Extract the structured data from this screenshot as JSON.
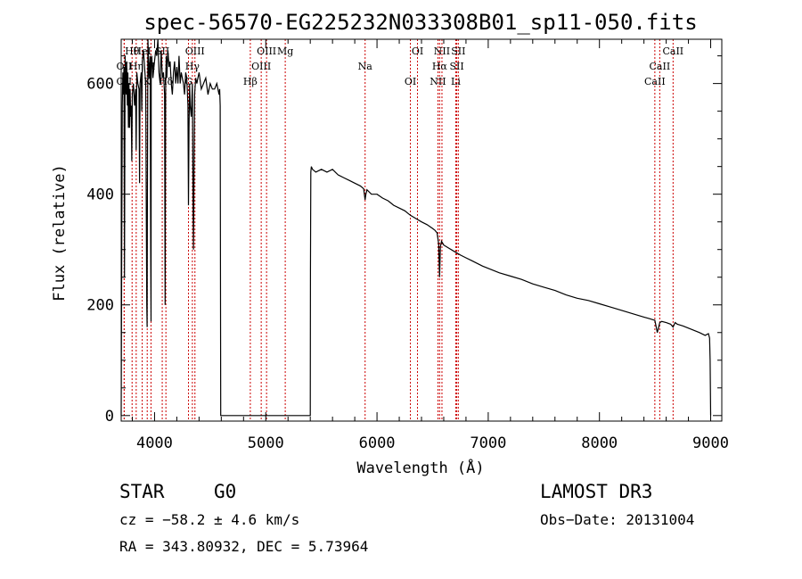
{
  "chart_data": {
    "type": "line",
    "title": "spec-56570-EG225232N033308B01_sp11-050.fits",
    "xlabel": "Wavelength (Å)",
    "ylabel": "Flux (relative)",
    "xlim": [
      3700,
      9100
    ],
    "ylim": [
      -10,
      680
    ],
    "x_ticks": [
      4000,
      5000,
      6000,
      7000,
      8000,
      9000
    ],
    "y_ticks": [
      0,
      200,
      400,
      600
    ],
    "series": [
      {
        "name": "flux",
        "x": [
          3700,
          3705,
          3710,
          3715,
          3720,
          3725,
          3730,
          3735,
          3740,
          3745,
          3750,
          3755,
          3760,
          3765,
          3770,
          3775,
          3780,
          3785,
          3790,
          3795,
          3800,
          3810,
          3820,
          3830,
          3835,
          3840,
          3850,
          3860,
          3865,
          3870,
          3880,
          3885,
          3890,
          3900,
          3910,
          3920,
          3930,
          3933,
          3935,
          3940,
          3950,
          3960,
          3965,
          3968,
          3970,
          3975,
          3985,
          4000,
          4010,
          4020,
          4030,
          4040,
          4050,
          4060,
          4070,
          4080,
          4090,
          4095,
          4100,
          4105,
          4110,
          4120,
          4130,
          4140,
          4150,
          4160,
          4170,
          4180,
          4190,
          4200,
          4210,
          4220,
          4230,
          4240,
          4250,
          4260,
          4270,
          4280,
          4290,
          4300,
          4305,
          4310,
          4315,
          4320,
          4330,
          4340,
          4345,
          4350,
          4360,
          4370,
          4380,
          4390,
          4400,
          4420,
          4440,
          4460,
          4480,
          4500,
          4520,
          4540,
          4560,
          4580,
          4585,
          4590,
          4595,
          5400,
          5402,
          5405,
          5410,
          5420,
          5450,
          5500,
          5550,
          5600,
          5650,
          5700,
          5750,
          5800,
          5850,
          5880,
          5893,
          5900,
          5910,
          5950,
          6000,
          6050,
          6100,
          6150,
          6200,
          6250,
          6300,
          6350,
          6400,
          6450,
          6500,
          6520,
          6540,
          6555,
          6563,
          6570,
          6580,
          6600,
          6650,
          6700,
          6750,
          6800,
          6850,
          6900,
          6950,
          7000,
          7100,
          7200,
          7300,
          7400,
          7500,
          7600,
          7700,
          7800,
          7900,
          8000,
          8100,
          8200,
          8300,
          8400,
          8450,
          8498,
          8520,
          8542,
          8560,
          8600,
          8640,
          8662,
          8680,
          8700,
          8750,
          8800,
          8850,
          8900,
          8950,
          8980,
          8990,
          8995,
          9000
        ],
        "y": [
          0,
          300,
          560,
          620,
          580,
          630,
          250,
          650,
          600,
          580,
          640,
          560,
          620,
          520,
          600,
          520,
          590,
          540,
          560,
          460,
          580,
          600,
          560,
          590,
          480,
          620,
          600,
          590,
          420,
          600,
          620,
          550,
          640,
          660,
          630,
          600,
          200,
          160,
          330,
          680,
          610,
          650,
          300,
          170,
          640,
          650,
          610,
          640,
          660,
          650,
          680,
          620,
          600,
          660,
          610,
          620,
          580,
          200,
          600,
          650,
          610,
          660,
          630,
          640,
          600,
          580,
          620,
          640,
          600,
          630,
          600,
          650,
          600,
          620,
          610,
          600,
          580,
          620,
          610,
          560,
          380,
          520,
          600,
          560,
          540,
          600,
          420,
          300,
          580,
          610,
          600,
          610,
          620,
          590,
          600,
          610,
          580,
          600,
          590,
          590,
          600,
          580,
          590,
          560,
          0,
          0,
          260,
          440,
          450,
          445,
          440,
          445,
          440,
          445,
          435,
          430,
          425,
          420,
          415,
          410,
          390,
          400,
          408,
          400,
          400,
          393,
          388,
          380,
          375,
          370,
          362,
          356,
          350,
          345,
          338,
          335,
          330,
          310,
          250,
          305,
          315,
          308,
          302,
          296,
          290,
          285,
          280,
          275,
          270,
          266,
          258,
          252,
          246,
          238,
          232,
          226,
          218,
          212,
          208,
          202,
          196,
          190,
          184,
          178,
          175,
          172,
          150,
          168,
          170,
          168,
          165,
          160,
          168,
          165,
          162,
          158,
          154,
          150,
          145,
          148,
          140,
          100,
          0
        ]
      }
    ],
    "spectral_lines": [
      {
        "label": "Hθ",
        "wavelength": 3798
      },
      {
        "label": "OII",
        "wavelength": 3727
      },
      {
        "label": "OII",
        "wavelength": 3727
      },
      {
        "label": "HeI",
        "wavelength": 3889
      },
      {
        "label": "Hη",
        "wavelength": 3835
      },
      {
        "label": "K",
        "wavelength": 3934
      },
      {
        "label": "SII",
        "wavelength": 4069
      },
      {
        "label": "H",
        "wavelength": 3968
      },
      {
        "label": "Hδ",
        "wavelength": 4102
      },
      {
        "label": "OIII",
        "wavelength": 4363
      },
      {
        "label": "Hγ",
        "wavelength": 4340
      },
      {
        "label": "G",
        "wavelength": 4305
      },
      {
        "label": "OIII",
        "wavelength": 5007
      },
      {
        "label": "OIII",
        "wavelength": 4959
      },
      {
        "label": "Hβ",
        "wavelength": 4861
      },
      {
        "label": "Mg",
        "wavelength": 5175
      },
      {
        "label": "Na",
        "wavelength": 5893
      },
      {
        "label": "OI",
        "wavelength": 6300
      },
      {
        "label": "OI",
        "wavelength": 6364
      },
      {
        "label": "Hα",
        "wavelength": 6563
      },
      {
        "label": "NII",
        "wavelength": 6548
      },
      {
        "label": "NII",
        "wavelength": 6584
      },
      {
        "label": "SII",
        "wavelength": 6717
      },
      {
        "label": "Li",
        "wavelength": 6708
      },
      {
        "label": "SII",
        "wavelength": 6731
      },
      {
        "label": "CaII",
        "wavelength": 8542
      },
      {
        "label": "CaII",
        "wavelength": 8498
      },
      {
        "label": "CaII",
        "wavelength": 8662
      }
    ],
    "line_color": "#000000",
    "marker_color": "#cc0000",
    "axis_color": "#000000"
  },
  "info": {
    "object_class": "STAR",
    "subclass": "G0",
    "survey": "LAMOST DR3",
    "redshift": "cz = −58.2 ± 4.6 km/s",
    "obs_date": "Obs−Date: 20131004",
    "coords": "RA = 343.80932, DEC =    5.73964"
  }
}
